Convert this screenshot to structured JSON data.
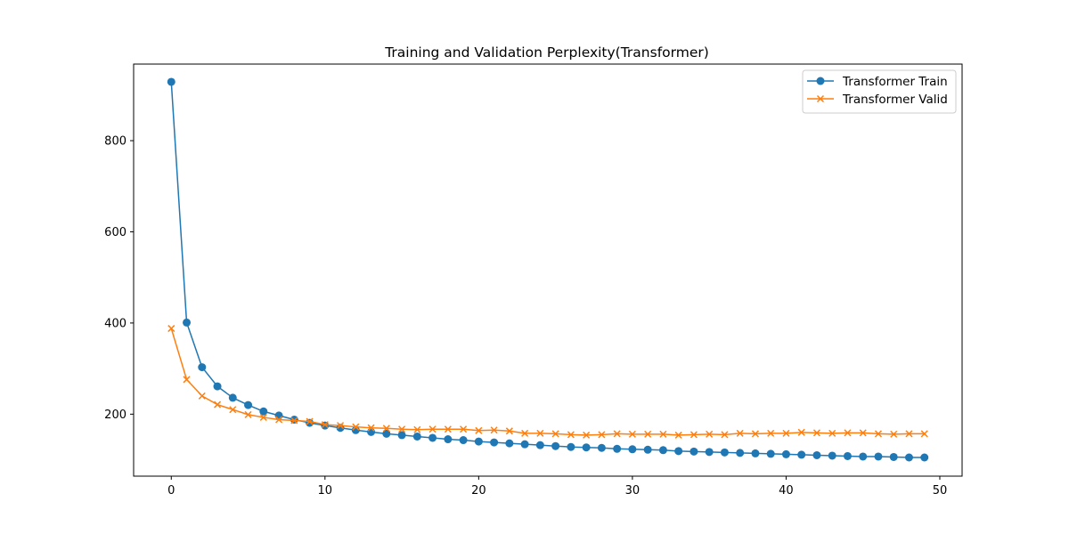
{
  "chart_data": {
    "type": "line",
    "title": "Training and Validation Perplexity(Transformer)",
    "xlabel": "",
    "ylabel": "",
    "xlim": [
      -2.45,
      51.45
    ],
    "ylim": [
      64,
      968
    ],
    "xticks": [
      0,
      10,
      20,
      30,
      40,
      50
    ],
    "yticks": [
      200,
      400,
      600,
      800
    ],
    "grid": false,
    "legend_position": "top-right",
    "x": [
      0,
      1,
      2,
      3,
      4,
      5,
      6,
      7,
      8,
      9,
      10,
      11,
      12,
      13,
      14,
      15,
      16,
      17,
      18,
      19,
      20,
      21,
      22,
      23,
      24,
      25,
      26,
      27,
      28,
      29,
      30,
      31,
      32,
      33,
      34,
      35,
      36,
      37,
      38,
      39,
      40,
      41,
      42,
      43,
      44,
      45,
      46,
      47,
      48,
      49
    ],
    "series": [
      {
        "name": "Transformer Train",
        "color": "#1f77b4",
        "marker": "circle",
        "values": [
          929,
          401,
          303,
          261,
          236,
          220,
          206,
          197,
          188,
          181,
          175,
          170,
          165,
          161,
          157,
          154,
          151,
          148,
          145,
          143,
          140,
          138,
          136,
          134,
          132,
          130,
          128,
          127,
          126,
          124,
          123,
          122,
          121,
          119,
          118,
          117,
          116,
          115,
          114,
          113,
          112,
          111,
          110,
          109,
          108,
          107,
          107,
          106,
          105,
          105
        ]
      },
      {
        "name": "Transformer Valid",
        "color": "#ff7f0e",
        "marker": "x",
        "values": [
          388,
          276,
          240,
          221,
          210,
          199,
          193,
          188,
          186,
          184,
          177,
          175,
          172,
          170,
          169,
          167,
          166,
          167,
          167,
          167,
          164,
          165,
          163,
          158,
          158,
          157,
          155,
          154,
          155,
          157,
          156,
          156,
          156,
          154,
          155,
          156,
          155,
          158,
          157,
          158,
          158,
          160,
          159,
          158,
          159,
          159,
          157,
          156,
          157,
          157
        ]
      }
    ]
  }
}
